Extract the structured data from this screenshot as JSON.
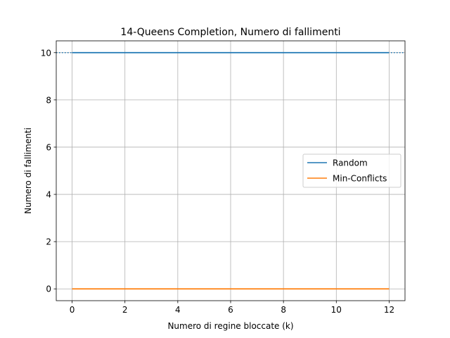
{
  "chart_data": {
    "type": "line",
    "title": "14-Queens Completion, Numero di fallimenti",
    "xlabel": "Numero di regine bloccate (k)",
    "ylabel": "Numero di fallimenti",
    "xlim": [
      -0.6,
      12.6
    ],
    "ylim": [
      -0.5,
      10.5
    ],
    "xticks": [
      0,
      2,
      4,
      6,
      8,
      10,
      12
    ],
    "yticks": [
      0,
      2,
      4,
      6,
      8,
      10
    ],
    "grid": true,
    "legend_position": "center-right",
    "series": [
      {
        "name": "Random",
        "color": "#1f77b4",
        "x": [
          0,
          1,
          2,
          3,
          4,
          5,
          6,
          7,
          8,
          9,
          10,
          11,
          12
        ],
        "values": [
          10,
          10,
          10,
          10,
          10,
          10,
          10,
          10,
          10,
          10,
          10,
          10,
          10
        ]
      },
      {
        "name": "Min-Conflicts",
        "color": "#ff7f0e",
        "x": [
          0,
          1,
          2,
          3,
          4,
          5,
          6,
          7,
          8,
          9,
          10,
          11,
          12
        ],
        "values": [
          0,
          0,
          0,
          0,
          0,
          0,
          0,
          0,
          0,
          0,
          0,
          0,
          0
        ]
      }
    ]
  }
}
